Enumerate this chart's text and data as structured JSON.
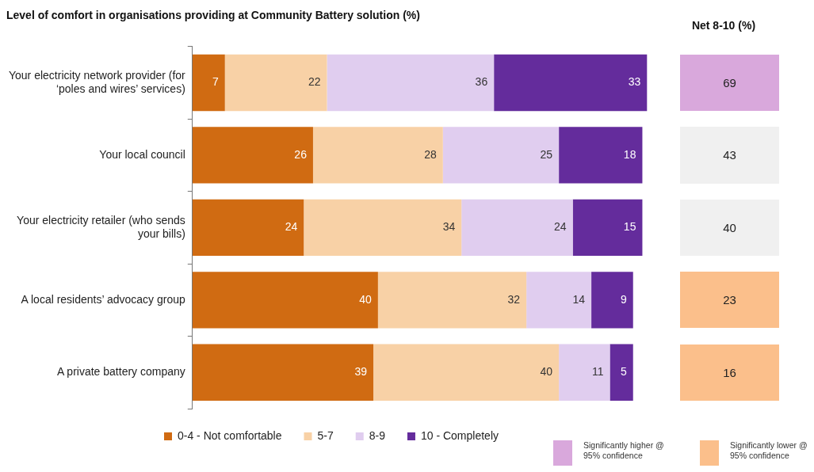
{
  "chart_data": [
    {
      "type": "bar",
      "orientation": "horizontal",
      "stacked": true,
      "title": "Level of comfort in organisations providing at Community Battery solution (%)",
      "categories": [
        "Your electricity network provider (for ‘poles and wires’ services)",
        "Your local council",
        "Your electricity retailer (who sends your bills)",
        "A local residents’ advocacy group",
        "A private battery company"
      ],
      "series": [
        {
          "name": "0-4 - Not comfortable",
          "color": "#d06b12",
          "values": [
            7,
            26,
            24,
            40,
            39
          ]
        },
        {
          "name": "5-7",
          "color": "#f8d1a6",
          "values": [
            22,
            28,
            34,
            32,
            40
          ]
        },
        {
          "name": "8-9",
          "color": "#e0cdef",
          "values": [
            36,
            25,
            24,
            14,
            11
          ]
        },
        {
          "name": "10 - Completely",
          "color": "#642c9c",
          "values": [
            33,
            18,
            15,
            9,
            5
          ]
        }
      ],
      "data_labels": true,
      "legend": "bottom"
    },
    {
      "type": "heatmap",
      "title": "Net 8-10 (%)",
      "categories": [
        null
      ],
      "y_categories": [
        null,
        null,
        null,
        null,
        null
      ],
      "cells": [
        [
          69
        ],
        [
          43
        ],
        [
          40
        ],
        [
          23
        ],
        [
          16
        ]
      ],
      "colors": [
        "#d9a8dc",
        "#f0f0f0",
        "#f0f0f0",
        "#fbbf8b",
        "#fbbf8b"
      ],
      "data_labels": true,
      "annotations": [
        "Significantly higher @ 95% confidence",
        "Significantly lower @ 95% confidence"
      ]
    }
  ]
}
